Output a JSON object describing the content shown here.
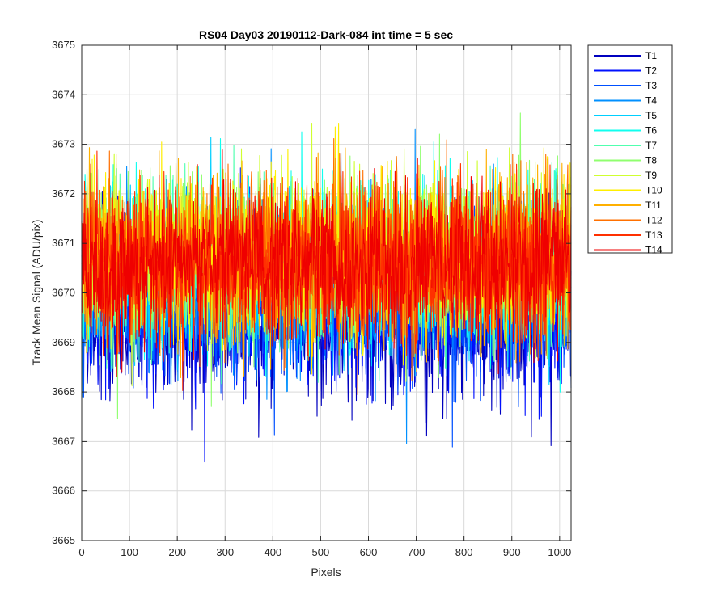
{
  "chart_data": {
    "type": "line",
    "title": "RS04 Day03 20190112-Dark-084 int time = 5 sec",
    "xlabel": "Pixels",
    "ylabel": "Track Mean Signal (ADU/pix)",
    "xlim": [
      0,
      1024
    ],
    "ylim": [
      3665,
      3675
    ],
    "xticks": [
      0,
      100,
      200,
      300,
      400,
      500,
      600,
      700,
      800,
      900,
      1000
    ],
    "yticks": [
      3665,
      3666,
      3667,
      3668,
      3669,
      3670,
      3671,
      3672,
      3673,
      3674,
      3675
    ],
    "grid": true,
    "legend_position": "outside-top-right",
    "n_points_per_series": 1024,
    "series": [
      {
        "name": "T1",
        "color": "#0000bf",
        "mean": 3669.4,
        "spread": 0.75
      },
      {
        "name": "T2",
        "color": "#0010ff",
        "mean": 3669.7,
        "spread": 0.8
      },
      {
        "name": "T3",
        "color": "#0050ff",
        "mean": 3669.9,
        "spread": 0.8
      },
      {
        "name": "T4",
        "color": "#0090ff",
        "mean": 3670.2,
        "spread": 0.8
      },
      {
        "name": "T5",
        "color": "#00cfff",
        "mean": 3670.4,
        "spread": 0.8
      },
      {
        "name": "T6",
        "color": "#10ffef",
        "mean": 3670.5,
        "spread": 0.8
      },
      {
        "name": "T7",
        "color": "#50ffaf",
        "mean": 3670.6,
        "spread": 0.8
      },
      {
        "name": "T8",
        "color": "#90ff6f",
        "mean": 3670.7,
        "spread": 0.8
      },
      {
        "name": "T9",
        "color": "#cfff30",
        "mean": 3670.8,
        "spread": 0.8
      },
      {
        "name": "T10",
        "color": "#ffef00",
        "mean": 3670.8,
        "spread": 0.8
      },
      {
        "name": "T11",
        "color": "#ffb000",
        "mean": 3670.7,
        "spread": 0.8
      },
      {
        "name": "T12",
        "color": "#ff7000",
        "mean": 3670.6,
        "spread": 0.8
      },
      {
        "name": "T13",
        "color": "#ff3000",
        "mean": 3670.6,
        "spread": 0.8
      },
      {
        "name": "T14",
        "color": "#ef0000",
        "mean": 3670.6,
        "spread": 0.8
      }
    ]
  }
}
